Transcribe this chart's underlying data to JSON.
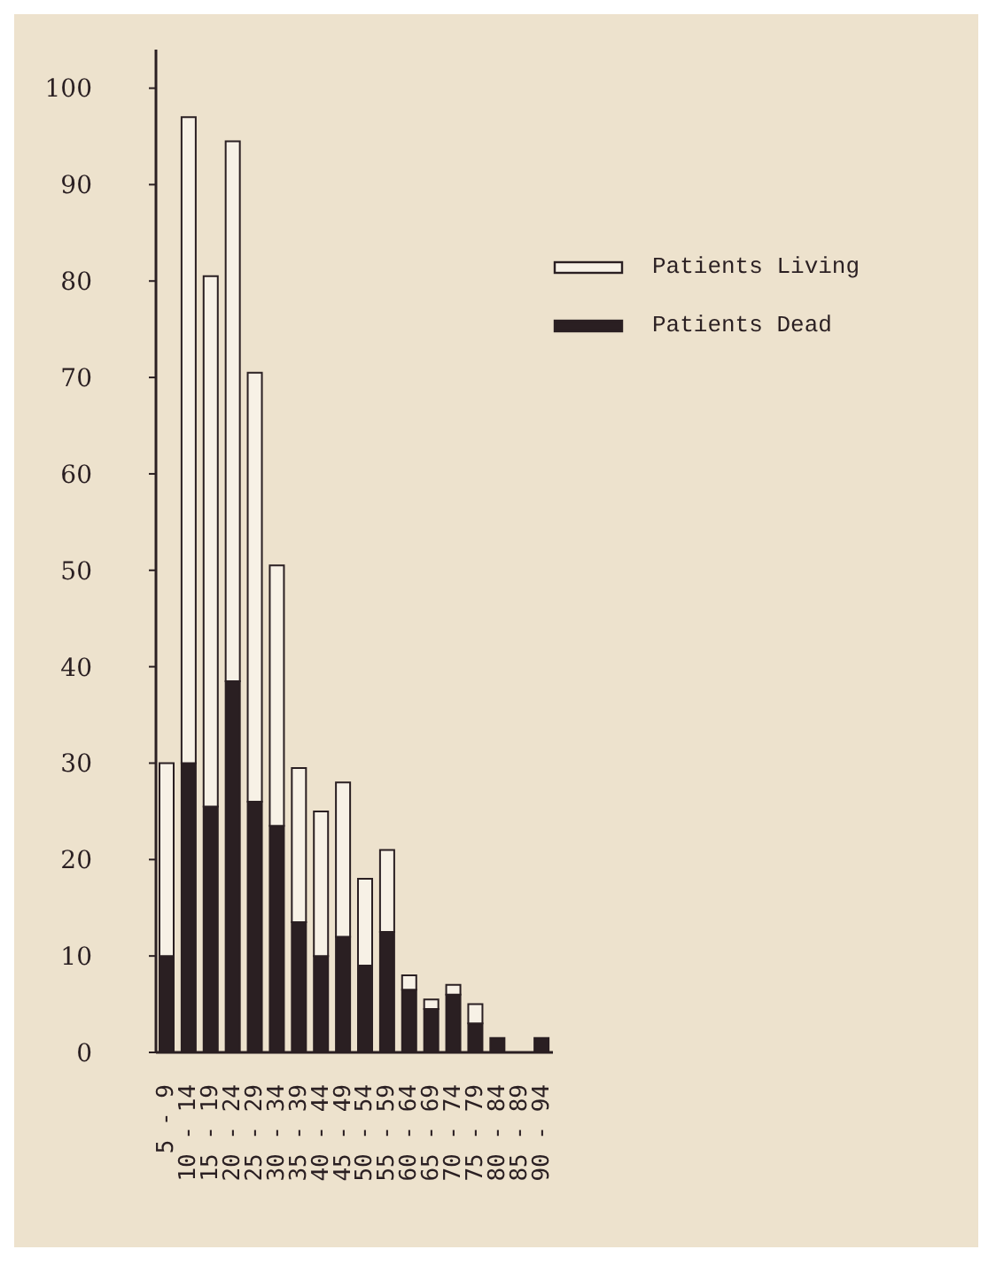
{
  "chart_data": {
    "type": "bar",
    "stacked": true,
    "categories": [
      "5 - 9",
      "10 - 14",
      "15 - 19",
      "20 - 24",
      "25 - 29",
      "30 - 34",
      "35 - 39",
      "40 - 44",
      "45 - 49",
      "50 - 54",
      "55 - 59",
      "60 - 64",
      "65 - 69",
      "70 - 74",
      "75 - 79",
      "80 - 84",
      "85 - 89",
      "90 - 94"
    ],
    "series": [
      {
        "name": "Patients Dead",
        "color": "#2a1f22",
        "values": [
          10,
          30,
          25.5,
          38.5,
          26,
          23.5,
          13.5,
          10,
          12,
          9,
          12.5,
          6.5,
          4.5,
          6,
          3,
          1.5,
          0,
          1.5
        ]
      },
      {
        "name": "Patients Living",
        "color": "#f7f1e6",
        "values": [
          20,
          67,
          55,
          56,
          44.5,
          27,
          16,
          15,
          16,
          9,
          8.5,
          1.5,
          1,
          1,
          2,
          0,
          0,
          0
        ]
      }
    ],
    "ylim": [
      0,
      104
    ],
    "yticks": [
      0,
      10,
      20,
      30,
      40,
      50,
      60,
      70,
      80,
      90,
      100
    ],
    "grid": false,
    "legend": "top right"
  }
}
